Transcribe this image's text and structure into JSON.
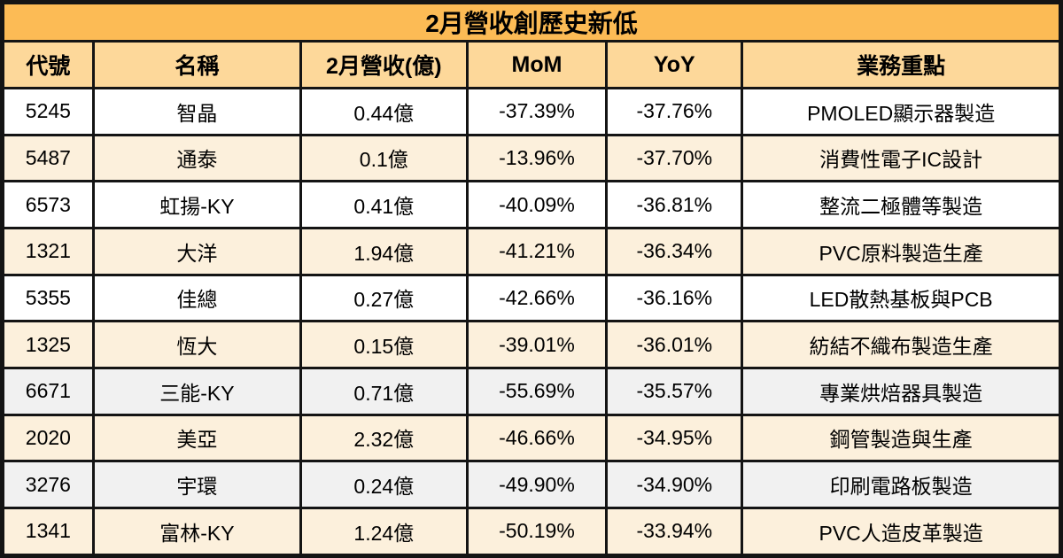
{
  "chart_data": {
    "type": "table",
    "title": "2月營收創歷史新低",
    "columns": [
      "代號",
      "名稱",
      "2月營收(億)",
      "MoM",
      "YoY",
      "業務重點"
    ],
    "rows": [
      {
        "cells": [
          "5245",
          "智晶",
          "0.44億",
          "-37.39%",
          "-37.76%",
          "PMOLED顯示器製造"
        ],
        "variant": "white"
      },
      {
        "cells": [
          "5487",
          "通泰",
          "0.1億",
          "-13.96%",
          "-37.70%",
          "消費性電子IC設計"
        ],
        "variant": "cream"
      },
      {
        "cells": [
          "6573",
          "虹揚-KY",
          "0.41億",
          "-40.09%",
          "-36.81%",
          "整流二極體等製造"
        ],
        "variant": "white"
      },
      {
        "cells": [
          "1321",
          "大洋",
          "1.94億",
          "-41.21%",
          "-36.34%",
          "PVC原料製造生產"
        ],
        "variant": "cream"
      },
      {
        "cells": [
          "5355",
          "佳總",
          "0.27億",
          "-42.66%",
          "-36.16%",
          "LED散熱基板與PCB"
        ],
        "variant": "white"
      },
      {
        "cells": [
          "1325",
          "恆大",
          "0.15億",
          "-39.01%",
          "-36.01%",
          "紡結不織布製造生產"
        ],
        "variant": "cream"
      },
      {
        "cells": [
          "6671",
          "三能-KY",
          "0.71億",
          "-55.69%",
          "-35.57%",
          "專業烘焙器具製造"
        ],
        "variant": "gray"
      },
      {
        "cells": [
          "2020",
          "美亞",
          "2.32億",
          "-46.66%",
          "-34.95%",
          "鋼管製造與生產"
        ],
        "variant": "cream"
      },
      {
        "cells": [
          "3276",
          "宇環",
          "0.24億",
          "-49.90%",
          "-34.90%",
          "印刷電路板製造"
        ],
        "variant": "gray"
      },
      {
        "cells": [
          "1341",
          "富林-KY",
          "1.24億",
          "-50.19%",
          "-33.94%",
          "PVC人造皮革製造"
        ],
        "variant": "cream"
      }
    ]
  },
  "colors": {
    "title_bar": "#FCBB55",
    "header_row": "#FDD89A",
    "row_white": "#FFFFFF",
    "row_cream": "#FCF0DC",
    "row_gray": "#F1F1F1",
    "border": "#141414"
  }
}
